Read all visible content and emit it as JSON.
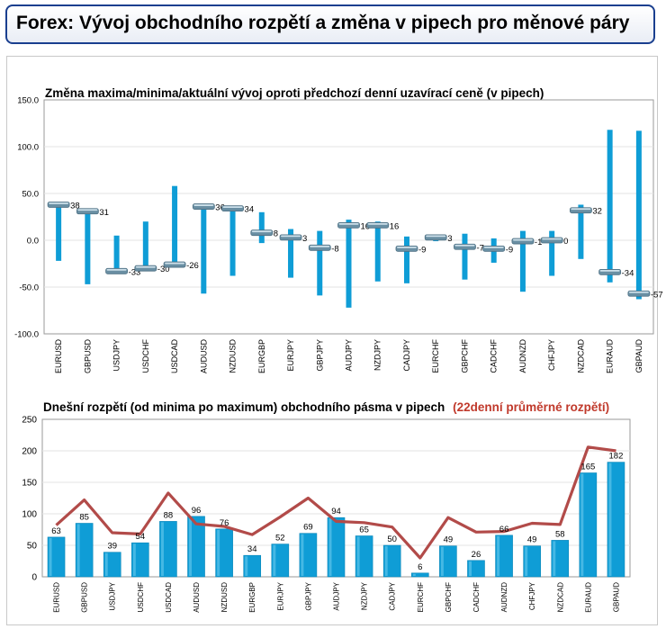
{
  "header": {
    "title": "Forex: Vývoj obchodního rozpětí a změna v pipech pro měnové páry"
  },
  "colors": {
    "bar": "#0f9dd6",
    "marker": "#6a8fa3",
    "avg_line": "#b24b49",
    "subtitle_red": "#c0392b"
  },
  "chart_data": [
    {
      "type": "bar",
      "title": "Změna maxima/minima/aktuální vývoj oproti předchozí denní uzavírací ceně (v pipech)",
      "categories": [
        "EURUSD",
        "GBPUSD",
        "USDJPY",
        "USDCHF",
        "USDCAD",
        "AUDUSD",
        "NZDUSD",
        "EURGBP",
        "EURJPY",
        "GBPJPY",
        "AUDJPY",
        "NZDJPY",
        "CADJPY",
        "EURCHF",
        "GBPCHF",
        "CADCHF",
        "AUDNZD",
        "CHFJPY",
        "NZDCAD",
        "EURAUD",
        "GBPAUD"
      ],
      "high": [
        40,
        34,
        5,
        20,
        58,
        38,
        36,
        30,
        12,
        10,
        22,
        20,
        4,
        5,
        7,
        2,
        10,
        10,
        38,
        118,
        117
      ],
      "low": [
        -22,
        -47,
        -33,
        -33,
        -29,
        -57,
        -38,
        -3,
        -40,
        -59,
        -72,
        -44,
        -46,
        -1,
        -42,
        -24,
        -55,
        -38,
        -20,
        -45,
        -63
      ],
      "current": [
        38,
        31,
        -33,
        -30,
        -26,
        36,
        34,
        8,
        3,
        -8,
        16,
        16,
        -9,
        3,
        -7,
        -9,
        -1,
        0,
        32,
        -34,
        -57
      ],
      "current_labels": [
        "38",
        "31",
        "-33",
        "-30",
        "-26",
        "36",
        "34",
        "8",
        "3",
        "-8",
        "16",
        "16",
        "-9",
        "3",
        "-7",
        "-9",
        "-1",
        "0",
        "32",
        "-34",
        "-57"
      ],
      "ylim": [
        -100,
        150
      ],
      "yticks": [
        "150.0",
        "100.0",
        "50.0",
        "0.0",
        "-50.0",
        "-100.0"
      ],
      "grid": true
    },
    {
      "type": "bar",
      "title": "Dnešní rozpětí (od minima po maximum) obchodního pásma v pipech",
      "subtitle": "(22denní průměrné rozpětí)",
      "categories": [
        "EURUSD",
        "GBPUSD",
        "USDJPY",
        "USDCHF",
        "USDCAD",
        "AUDUSD",
        "NZDUSD",
        "EURGBP",
        "EURJPY",
        "GBPJPY",
        "AUDJPY",
        "NZDJPY",
        "CADJPY",
        "EURCHF",
        "GBPCHF",
        "CADCHF",
        "AUDNZD",
        "CHFJPY",
        "NZDCAD",
        "EURAUD",
        "GBPAUD"
      ],
      "values": [
        63,
        85,
        39,
        54,
        88,
        96,
        76,
        34,
        52,
        69,
        94,
        65,
        50,
        6,
        49,
        26,
        66,
        49,
        58,
        165,
        182
      ],
      "value_labels": [
        "63",
        "85",
        "39",
        "54",
        "88",
        "96",
        "76",
        "34",
        "52",
        "69",
        "94",
        "65",
        "50",
        "6",
        "49",
        "26",
        "66",
        "49",
        "58",
        "165",
        "182"
      ],
      "avg_range": [
        82,
        122,
        70,
        68,
        133,
        84,
        80,
        67,
        95,
        125,
        88,
        86,
        79,
        30,
        94,
        71,
        72,
        85,
        83,
        206,
        200
      ],
      "ylim": [
        0,
        250
      ],
      "yticks": [
        "250",
        "200",
        "150",
        "100",
        "50",
        "0"
      ],
      "grid": true
    }
  ]
}
